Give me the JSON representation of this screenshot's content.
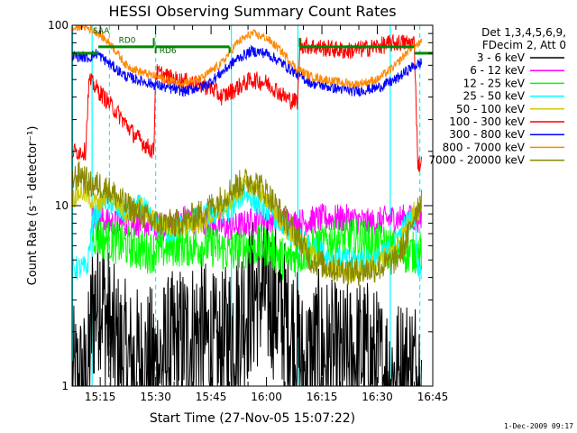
{
  "chart_data": {
    "type": "line",
    "title": "HESSI Observing Summary Count Rates",
    "xlabel": "Start Time (27-Nov-05 15:07:22)",
    "ylabel": "Count Rate (s⁻¹ detector⁻¹)",
    "yscale": "log",
    "ylim": [
      1,
      100
    ],
    "xlim_minutes": [
      7.4,
      105
    ],
    "x_ticks": [
      {
        "label": "15:15",
        "minutes": 15
      },
      {
        "label": "15:30",
        "minutes": 30
      },
      {
        "label": "15:45",
        "minutes": 45
      },
      {
        "label": "16:00",
        "minutes": 60
      },
      {
        "label": "16:15",
        "minutes": 75
      },
      {
        "label": "16:30",
        "minutes": 90
      },
      {
        "label": "16:45",
        "minutes": 105
      }
    ],
    "y_ticks": [
      {
        "label": "1",
        "value": 1
      },
      {
        "label": "10",
        "value": 10
      },
      {
        "label": "100",
        "value": 100
      }
    ],
    "legend_header": [
      "Det 1,3,4,5,6,9,",
      "FDecim 2, Att 0"
    ],
    "legend_placement": "right",
    "series": [
      {
        "name": "3 - 6 keV",
        "color": "#000000"
      },
      {
        "name": "6 - 12 keV",
        "color": "#ff00ff"
      },
      {
        "name": "12 - 25 keV",
        "color": "#00ff00"
      },
      {
        "name": "25 - 50 keV",
        "color": "#00ffff"
      },
      {
        "name": "50 - 100 keV",
        "color": "#cccc00"
      },
      {
        "name": "100 - 300 keV",
        "color": "#ff0000"
      },
      {
        "name": "300 - 800 keV",
        "color": "#0000ff"
      },
      {
        "name": "800 - 7000 keV",
        "color": "#ff8800"
      },
      {
        "name": "7000 - 20000 keV",
        "color": "#888800"
      }
    ],
    "profiles": {
      "3 - 6 keV": [
        [
          7.5,
          1
        ],
        [
          11.5,
          1
        ],
        [
          12.8,
          2.5
        ],
        [
          15,
          3.5
        ],
        [
          18,
          1.8
        ],
        [
          23,
          1.3
        ],
        [
          30,
          1.3
        ],
        [
          35,
          1.6
        ],
        [
          42,
          2
        ],
        [
          47,
          1.4
        ],
        [
          52,
          2.3
        ],
        [
          58,
          3.5
        ],
        [
          62,
          3
        ],
        [
          67,
          2
        ],
        [
          70,
          1.2
        ],
        [
          74,
          1.6
        ],
        [
          80,
          1.3
        ],
        [
          86,
          1.5
        ],
        [
          91,
          1.2
        ],
        [
          95,
          1.1
        ],
        [
          98,
          1.2
        ],
        [
          102,
          1.2
        ]
      ],
      "6 - 12 keV": [
        [
          12.8,
          9
        ],
        [
          18,
          8
        ],
        [
          25,
          8
        ],
        [
          32,
          7.5
        ],
        [
          38,
          8.5
        ],
        [
          45,
          8
        ],
        [
          50,
          7.5
        ],
        [
          55,
          8
        ],
        [
          59,
          8.5
        ],
        [
          63,
          8.5
        ],
        [
          68,
          8
        ],
        [
          75,
          8.5
        ],
        [
          82,
          8.5
        ],
        [
          88,
          8
        ],
        [
          94,
          8.5
        ],
        [
          98,
          8.5
        ],
        [
          102,
          8.5
        ]
      ],
      "12 - 25 keV": [
        [
          12.8,
          7
        ],
        [
          16,
          6.5
        ],
        [
          22,
          6
        ],
        [
          28,
          5.5
        ],
        [
          35,
          6
        ],
        [
          45,
          6
        ],
        [
          50,
          5.5
        ],
        [
          56,
          6
        ],
        [
          60,
          6
        ],
        [
          65,
          5
        ],
        [
          70,
          5.5
        ],
        [
          78,
          6.5
        ],
        [
          85,
          6.5
        ],
        [
          92,
          6
        ],
        [
          96,
          5.5
        ],
        [
          100,
          5.5
        ],
        [
          102,
          5.5
        ]
      ],
      "25 - 50 keV": [
        [
          7.5,
          4.5
        ],
        [
          11.5,
          4.5
        ],
        [
          12.8,
          8
        ],
        [
          16,
          11
        ],
        [
          22,
          9
        ],
        [
          26,
          10
        ],
        [
          30,
          8
        ],
        [
          34,
          7
        ],
        [
          38,
          8
        ],
        [
          45,
          9
        ],
        [
          50,
          9.5
        ],
        [
          54,
          12
        ],
        [
          58,
          10
        ],
        [
          62,
          9
        ],
        [
          66,
          7
        ],
        [
          72,
          6
        ],
        [
          78,
          5
        ],
        [
          84,
          5
        ],
        [
          90,
          5
        ],
        [
          94,
          6
        ],
        [
          98,
          8
        ],
        [
          100,
          9
        ],
        [
          101,
          4.5
        ],
        [
          102,
          4.5
        ]
      ],
      "50 - 100 keV": [
        [
          7.5,
          11
        ],
        [
          10,
          12
        ],
        [
          12,
          11
        ],
        [
          15,
          10
        ],
        [
          17,
          12
        ],
        [
          22,
          9
        ],
        [
          26,
          10
        ],
        [
          30,
          8
        ],
        [
          36,
          7.5
        ],
        [
          42,
          8
        ],
        [
          48,
          9.5
        ],
        [
          52,
          12
        ],
        [
          56,
          13
        ],
        [
          60,
          11
        ],
        [
          64,
          8
        ],
        [
          70,
          6
        ],
        [
          76,
          4.5
        ],
        [
          82,
          4.3
        ],
        [
          88,
          4.5
        ],
        [
          94,
          5.5
        ],
        [
          98,
          7.5
        ],
        [
          100,
          9.5
        ],
        [
          102,
          9
        ]
      ],
      "100 - 300 keV": [
        [
          7.5,
          20
        ],
        [
          11,
          20
        ],
        [
          12,
          50
        ],
        [
          16,
          40
        ],
        [
          20,
          32
        ],
        [
          24,
          25
        ],
        [
          28,
          21
        ],
        [
          29.5,
          20
        ],
        [
          30,
          55
        ],
        [
          35,
          50
        ],
        [
          40,
          48
        ],
        [
          45,
          45
        ],
        [
          48,
          40
        ],
        [
          52,
          45
        ],
        [
          56,
          50
        ],
        [
          60,
          48
        ],
        [
          62,
          45
        ],
        [
          65,
          40
        ],
        [
          67,
          38
        ],
        [
          68.5,
          38
        ],
        [
          69,
          78
        ],
        [
          75,
          75
        ],
        [
          82,
          72
        ],
        [
          88,
          75
        ],
        [
          95,
          80
        ],
        [
          100,
          80
        ],
        [
          101,
          17
        ],
        [
          102,
          17
        ]
      ],
      "300 - 800 keV": [
        [
          7.5,
          68
        ],
        [
          12,
          66
        ],
        [
          14,
          70
        ],
        [
          18,
          60
        ],
        [
          22,
          52
        ],
        [
          28,
          48
        ],
        [
          33,
          45
        ],
        [
          38,
          43
        ],
        [
          44,
          47
        ],
        [
          48,
          55
        ],
        [
          52,
          65
        ],
        [
          56,
          72
        ],
        [
          60,
          70
        ],
        [
          64,
          62
        ],
        [
          68,
          54
        ],
        [
          72,
          48
        ],
        [
          78,
          45
        ],
        [
          84,
          43
        ],
        [
          90,
          45
        ],
        [
          95,
          50
        ],
        [
          99,
          58
        ],
        [
          102,
          62
        ]
      ],
      "800 - 7000 keV": [
        [
          7.5,
          95
        ],
        [
          10,
          100
        ],
        [
          14,
          92
        ],
        [
          18,
          78
        ],
        [
          22,
          60
        ],
        [
          26,
          55
        ],
        [
          30,
          52
        ],
        [
          36,
          48
        ],
        [
          42,
          50
        ],
        [
          48,
          62
        ],
        [
          52,
          80
        ],
        [
          56,
          90
        ],
        [
          60,
          85
        ],
        [
          64,
          72
        ],
        [
          68,
          58
        ],
        [
          72,
          52
        ],
        [
          78,
          49
        ],
        [
          84,
          47
        ],
        [
          90,
          50
        ],
        [
          95,
          60
        ],
        [
          99,
          75
        ],
        [
          102,
          80
        ]
      ],
      "7000 - 20000 keV": [
        [
          7.5,
          14
        ],
        [
          10,
          15
        ],
        [
          12,
          13
        ],
        [
          15,
          13
        ],
        [
          18,
          12
        ],
        [
          22,
          10
        ],
        [
          26,
          9
        ],
        [
          30,
          8
        ],
        [
          36,
          8
        ],
        [
          42,
          9
        ],
        [
          48,
          11
        ],
        [
          52,
          13
        ],
        [
          56,
          14
        ],
        [
          60,
          12
        ],
        [
          64,
          9
        ],
        [
          68,
          7
        ],
        [
          72,
          5
        ],
        [
          78,
          4.5
        ],
        [
          84,
          4.3
        ],
        [
          90,
          4.5
        ],
        [
          95,
          5
        ],
        [
          98,
          6.5
        ],
        [
          100,
          9
        ],
        [
          102,
          11
        ]
      ]
    },
    "flags": {
      "SAA_level": 70,
      "ecl_segments": [
        [
          14.5,
          29.5
        ],
        [
          30,
          50
        ],
        [
          69,
          100
        ]
      ],
      "SAA_label": "SAA",
      "RD0_label": "RD0",
      "RD6_label": "RD6",
      "RD0_minutes": 20,
      "RD6_minutes": 31
    },
    "markers": {
      "solid_cyan_minutes": [
        7.5,
        12.8,
        50.5,
        68.5,
        93.5
      ],
      "dashed_cyan_minutes": [
        17.5,
        30,
        101.5
      ]
    }
  },
  "footer_timestamp": "1-Dec-2009 09:17"
}
